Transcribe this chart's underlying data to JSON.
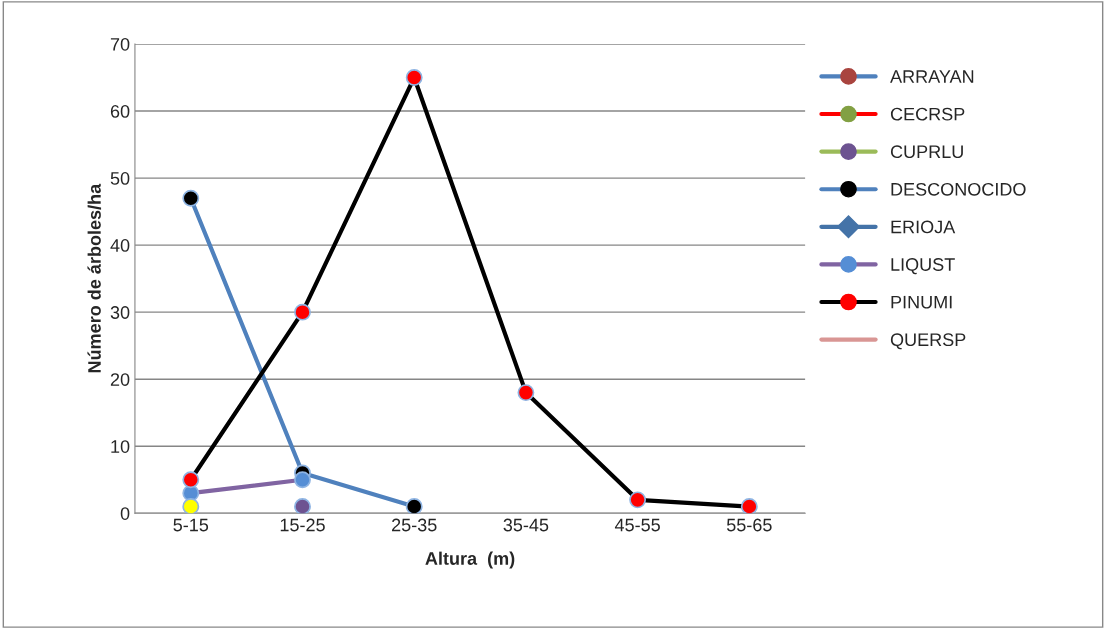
{
  "chart_data": {
    "type": "line",
    "xlabel": "Altura  (m)",
    "ylabel": "Número de árboles/ha",
    "categories": [
      "5-15",
      "15-25",
      "25-35",
      "35-45",
      "45-55",
      "55-65"
    ],
    "ylim": [
      0,
      70
    ],
    "yticks": [
      0,
      10,
      20,
      30,
      40,
      50,
      60,
      70
    ],
    "grid": "y",
    "legend": "top right",
    "series": [
      {
        "name": "ARRAYAN",
        "color": "#4f81bd",
        "marker": "circle",
        "colors": [
          "#a9443f",
          "#a9443f",
          "#a9443f",
          "#a9443f",
          "#a9443f",
          "#a9443f"
        ],
        "values": [
          null,
          null,
          null,
          null,
          null,
          null
        ]
      },
      {
        "name": "CECRSP",
        "color": "#ff0000",
        "marker": "circle",
        "colors": [
          "#82a043",
          "#82a043",
          "#82a043",
          "#82a043",
          "#82a043",
          "#82a043"
        ],
        "values": [
          null,
          null,
          null,
          null,
          null,
          null
        ]
      },
      {
        "name": "CUPRLU",
        "color": "#9bbb59",
        "marker": "circle",
        "colors": [
          "#6d5391",
          "#6d5391",
          "#6d5391",
          "#6d5391",
          "#6d5391",
          "#6d5391"
        ],
        "values": [
          null,
          1,
          null,
          null,
          null,
          null
        ]
      },
      {
        "name": "DESCONOCIDO",
        "color": "#4f81bd",
        "marker": "circle",
        "colors": [
          "#000000",
          "#000000",
          "#000000",
          "#000000",
          "#000000",
          "#000000"
        ],
        "values": [
          47,
          6,
          1,
          null,
          null,
          null
        ]
      },
      {
        "name": "ERIOJA",
        "color": "#4473a8",
        "marker": "diamond",
        "colors": [
          "#4473a8",
          "#4473a8",
          "#4473a8",
          "#4473a8",
          "#4473a8",
          "#4473a8"
        ],
        "values": [
          null,
          null,
          null,
          null,
          null,
          null
        ]
      },
      {
        "name": "LIQUST",
        "color": "#8064a2",
        "marker": "circle",
        "colors": [
          "#558ed5",
          "#558ed5",
          "#558ed5",
          "#558ed5",
          "#558ed5",
          "#558ed5"
        ],
        "values": [
          3,
          5,
          null,
          null,
          null,
          null
        ]
      },
      {
        "name": "PINUMI",
        "color": "#000000",
        "marker": "circle",
        "colors": [
          "#ff0000",
          "#ff0000",
          "#ff0000",
          "#ff0000",
          "#ff0000",
          "#ff0000"
        ],
        "values": [
          5,
          30,
          65,
          18,
          2,
          1
        ]
      },
      {
        "name": "QUERSP",
        "color": "#d99694",
        "marker": "none",
        "values": [
          null,
          null,
          null,
          null,
          null,
          null
        ]
      },
      {
        "color": "#d99694",
        "marker": "circle",
        "colors": [
          "#ffff00",
          "#ffff00",
          "#ffff00",
          "#ffff00",
          "#ffff00",
          "#ffff00"
        ],
        "values": [
          1,
          null,
          null,
          null,
          null,
          null
        ]
      }
    ]
  }
}
